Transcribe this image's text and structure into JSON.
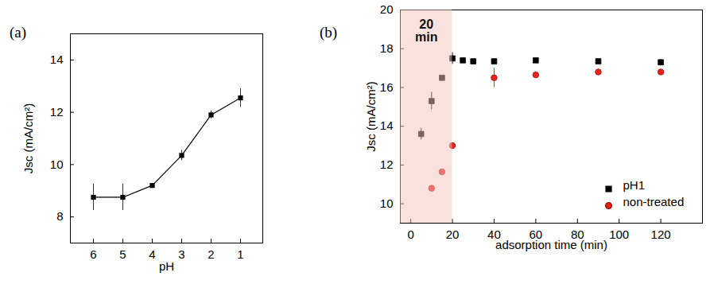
{
  "chart_data": [
    {
      "panel_label": "(a)",
      "type": "line",
      "marker": "square",
      "color": "#000000",
      "categories": [
        "6",
        "5",
        "4",
        "3",
        "2",
        "1"
      ],
      "values": [
        8.75,
        8.75,
        9.2,
        10.35,
        11.9,
        12.55
      ],
      "errors": [
        0.5,
        0.5,
        0.05,
        0.2,
        0.15,
        0.35
      ],
      "xlabel": "pH",
      "ylabel": "Jsc (mA/cm²)",
      "ylim": [
        7,
        15
      ],
      "yticks": [
        8,
        10,
        12,
        14
      ]
    },
    {
      "panel_label": "(b)",
      "type": "scatter",
      "xlabel": "adsorption time (min)",
      "ylabel": "Jsc (mA/cm²)",
      "xlim": [
        -5,
        140
      ],
      "xticks": [
        0,
        20,
        40,
        60,
        80,
        100,
        120
      ],
      "ylim": [
        9,
        20
      ],
      "yticks": [
        10,
        12,
        14,
        16,
        18,
        20
      ],
      "legend": "bottom-right",
      "highlight": {
        "x": [
          -5,
          20
        ],
        "label": "20\nmin"
      },
      "series": [
        {
          "name": "pH1",
          "color": "#000000",
          "marker": "square",
          "x": [
            5,
            10,
            15,
            20,
            25,
            30,
            40,
            60,
            90,
            120
          ],
          "values": [
            13.6,
            15.3,
            16.5,
            17.5,
            17.4,
            17.35,
            17.35,
            17.4,
            17.35,
            17.3
          ],
          "errors": [
            0.3,
            0.45,
            null,
            0.3,
            null,
            null,
            null,
            null,
            null,
            0.15
          ]
        },
        {
          "name": "non-treated",
          "color": "#e8231c",
          "marker": "circle",
          "x": [
            10,
            15,
            20,
            40,
            60,
            90,
            120
          ],
          "values": [
            10.8,
            11.65,
            13.0,
            16.5,
            16.65,
            16.8,
            16.8
          ],
          "errors": [
            null,
            null,
            null,
            0.5,
            null,
            null,
            null
          ]
        }
      ]
    }
  ]
}
